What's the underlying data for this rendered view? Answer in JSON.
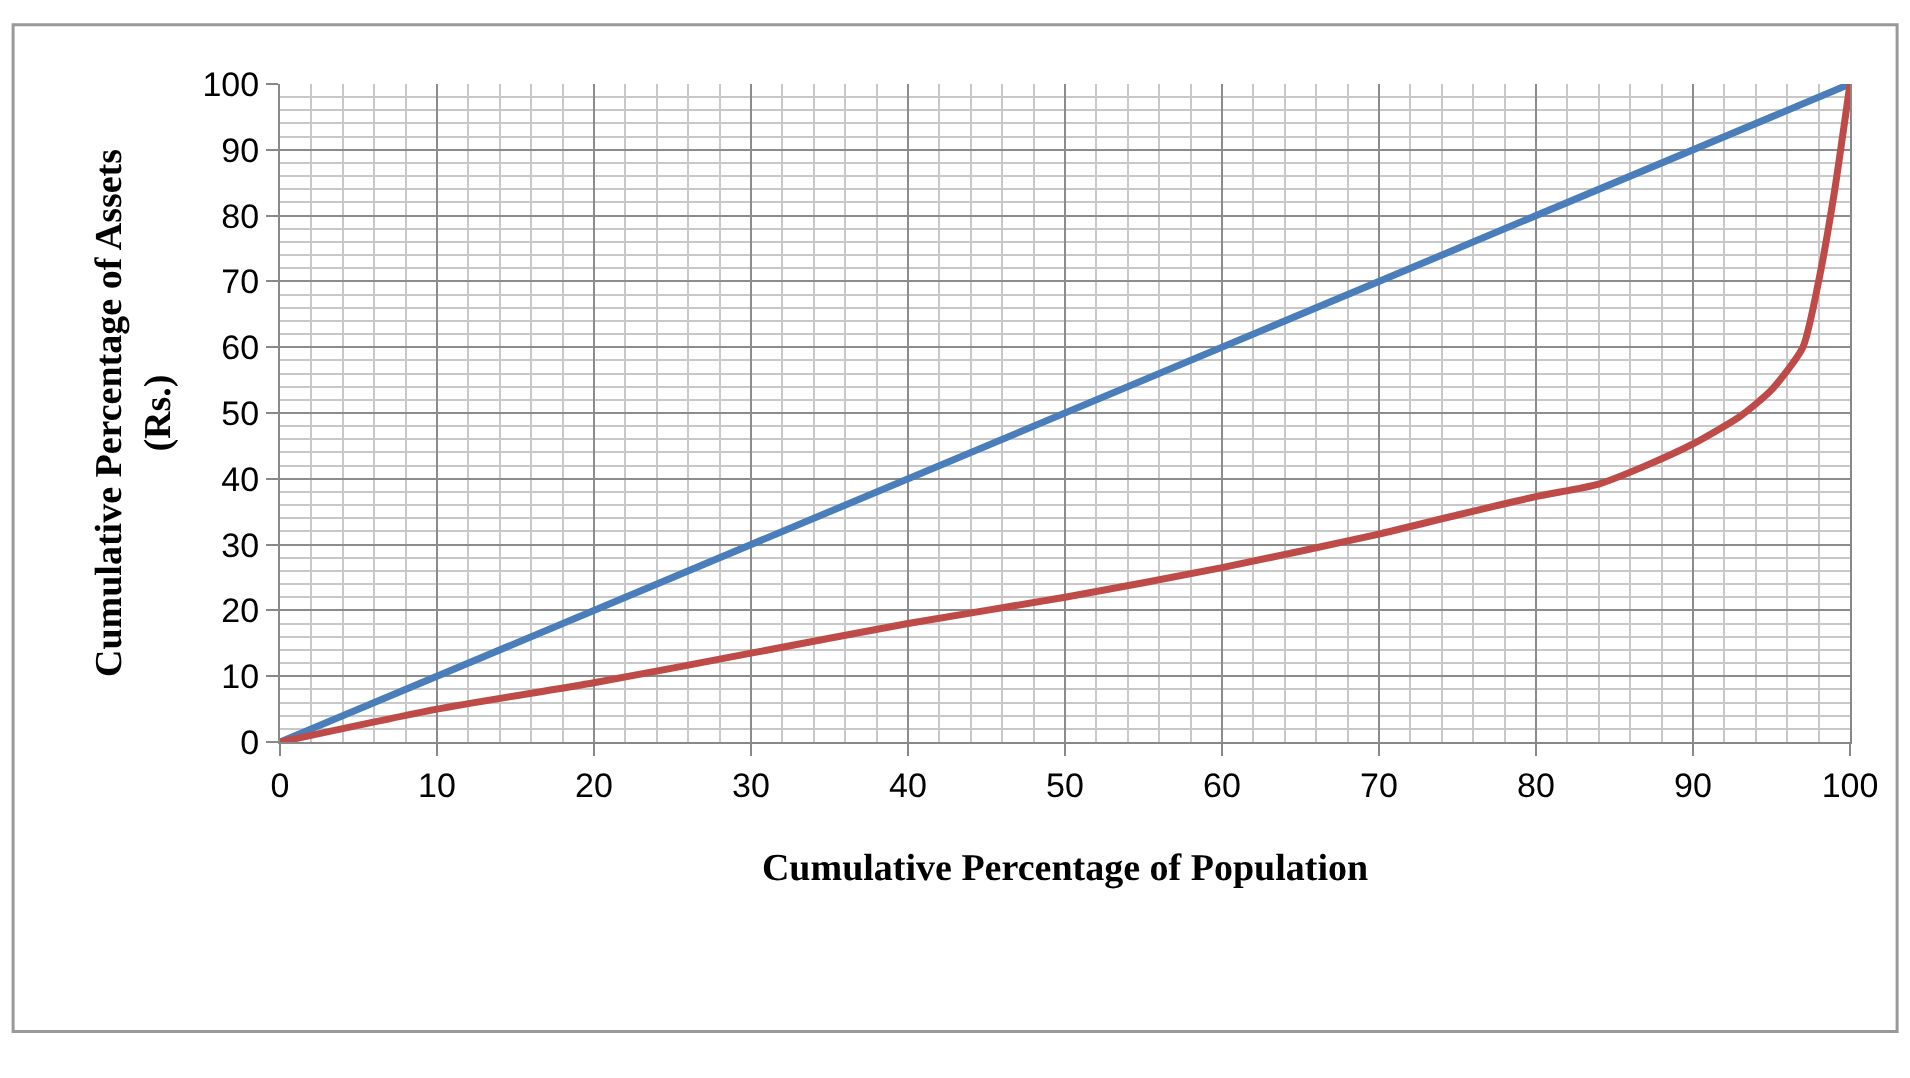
{
  "chart_data": {
    "type": "line",
    "xlabel": "Cumulative Percentage of Population",
    "ylabel": "Cumulative Percentage of Assets\n(Rs.)",
    "xlim": [
      0,
      100
    ],
    "xticks": [
      0,
      10,
      20,
      30,
      40,
      50,
      60,
      70,
      80,
      90,
      100
    ],
    "ylim": [
      0,
      100
    ],
    "yticks": [
      0,
      10,
      20,
      30,
      40,
      50,
      60,
      70,
      80,
      90,
      100
    ],
    "grid": true,
    "legend": false,
    "marker": "none",
    "line_style": "solid",
    "series": [
      {
        "color": "#4a7ebb",
        "x": [
          0,
          100
        ],
        "values": [
          0,
          100
        ]
      },
      {
        "color": "#be4b48",
        "x": [
          0,
          10,
          20,
          30,
          40,
          50,
          60,
          70,
          75,
          80,
          84,
          87,
          90,
          93,
          95,
          97,
          98,
          99,
          100
        ],
        "values": [
          0,
          5,
          9,
          13.5,
          18,
          22,
          26.5,
          31.6,
          34.5,
          37.3,
          39.2,
          42,
          45.3,
          49.5,
          53.5,
          60,
          70,
          83.5,
          100
        ]
      }
    ]
  }
}
